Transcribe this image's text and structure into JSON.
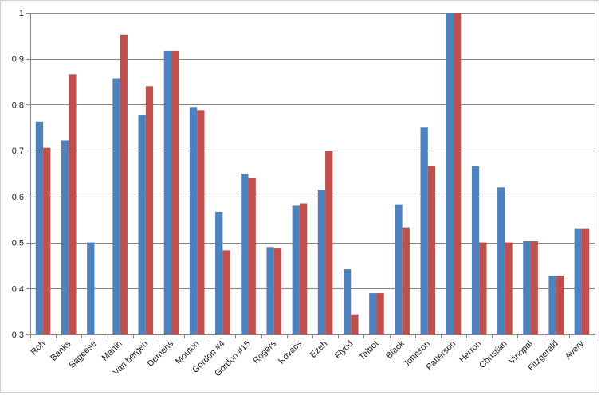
{
  "chart_data": {
    "type": "bar",
    "title": "",
    "xlabel": "",
    "ylabel": "",
    "ylim": [
      0.3,
      1.0
    ],
    "yticks": [
      "0.3",
      "0.4",
      "0.5",
      "0.6",
      "0.7",
      "0.8",
      "0.9",
      "1"
    ],
    "grid": true,
    "legend": "none",
    "categories": [
      "Roh",
      "Banks",
      "Sageese",
      "Martin",
      "Van bergen",
      "Demens",
      "Mouton",
      "Gordon #4",
      "Gordon #15",
      "Rogers",
      "Kovacs",
      "Ezeh",
      "Flyod",
      "Talbot",
      "Black",
      "Johnson",
      "Patterson",
      "Herron",
      "Christian",
      "Vinopal",
      "Fitzgerald",
      "Avery"
    ],
    "series": [
      {
        "color": "#4f81bd",
        "values": [
          0.763,
          0.722,
          0.5,
          0.857,
          0.778,
          0.917,
          0.795,
          0.567,
          0.65,
          0.49,
          0.58,
          0.615,
          0.442,
          0.39,
          0.583,
          0.75,
          1.0,
          0.666,
          0.62,
          0.503,
          0.428,
          0.531
        ]
      },
      {
        "color": "#c0504d",
        "values": [
          0.706,
          0.866,
          null,
          0.952,
          0.84,
          0.917,
          0.788,
          0.483,
          0.64,
          0.487,
          0.585,
          0.7,
          0.344,
          0.39,
          0.533,
          0.667,
          1.0,
          0.5,
          0.5,
          0.503,
          0.428,
          0.531
        ]
      }
    ]
  }
}
